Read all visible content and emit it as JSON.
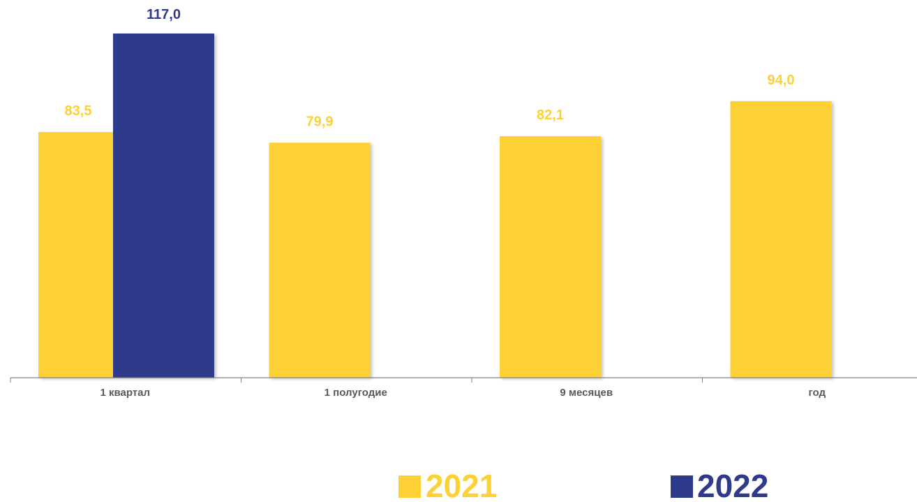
{
  "chart_data": {
    "type": "bar",
    "categories": [
      "1 квартал",
      "1 полугодие",
      "9 месяцев",
      "год"
    ],
    "series": [
      {
        "name": "2021",
        "values": [
          83.5,
          79.9,
          82.1,
          94.0
        ],
        "labels": [
          "83,5",
          "79,9",
          "82,1",
          "94,0"
        ]
      },
      {
        "name": "2022",
        "values": [
          117.0,
          null,
          null,
          null
        ],
        "labels": [
          "117,0",
          "",
          "",
          ""
        ]
      }
    ],
    "title": "",
    "xlabel": "",
    "ylabel": "",
    "ylim": [
      0,
      117.0
    ],
    "grid": false,
    "legend_placement": "bottom",
    "colors": {
      "2021": "#FDD035",
      "2022": "#2E3A8A",
      "axis": "#7F7F7F",
      "tick_label": "#595959"
    }
  }
}
